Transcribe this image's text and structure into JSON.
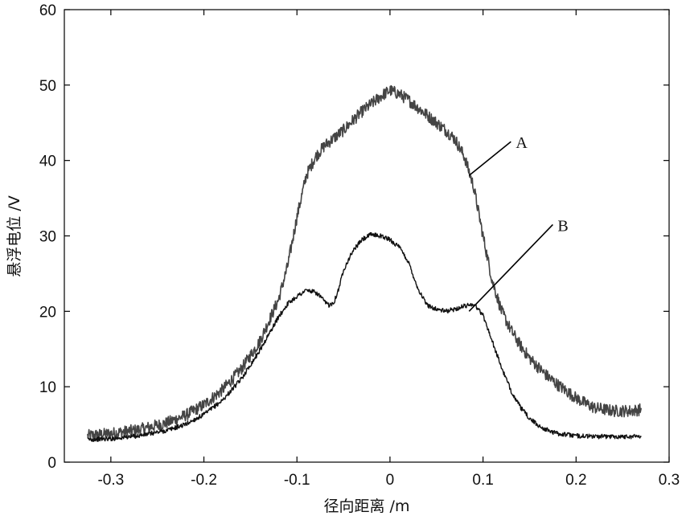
{
  "chart_data": {
    "type": "line",
    "title": "",
    "xlabel": "径向距离 /m",
    "ylabel": "悬浮电位 /V",
    "xlim": [
      -0.35,
      0.3
    ],
    "ylim": [
      0,
      60
    ],
    "xticks": [
      -0.3,
      -0.2,
      -0.1,
      0,
      0.1,
      0.2,
      0.3
    ],
    "xtick_labels": [
      "-0.3",
      "-0.2",
      "-0.1",
      "0",
      "0.1",
      "0.2",
      "0.3"
    ],
    "yticks": [
      0,
      10,
      20,
      30,
      40,
      50,
      60
    ],
    "ytick_labels": [
      "0",
      "10",
      "20",
      "30",
      "40",
      "50",
      "60"
    ],
    "grid": false,
    "legend": "none",
    "series": [
      {
        "name": "A",
        "color": "#444444",
        "noise": 0.8,
        "x": [
          -0.325,
          -0.3,
          -0.27,
          -0.24,
          -0.22,
          -0.2,
          -0.18,
          -0.16,
          -0.14,
          -0.12,
          -0.11,
          -0.1,
          -0.09,
          -0.08,
          -0.07,
          -0.06,
          -0.05,
          -0.04,
          -0.03,
          -0.02,
          -0.01,
          0,
          0.01,
          0.02,
          0.03,
          0.04,
          0.05,
          0.06,
          0.07,
          0.08,
          0.09,
          0.1,
          0.11,
          0.12,
          0.13,
          0.14,
          0.15,
          0.16,
          0.17,
          0.18,
          0.19,
          0.2,
          0.21,
          0.22,
          0.24,
          0.26,
          0.27
        ],
        "y": [
          3.5,
          3.8,
          4.3,
          5.2,
          6.2,
          7.6,
          9.6,
          12.3,
          16.0,
          21.5,
          26.0,
          32.5,
          38.0,
          40.5,
          42.0,
          43.0,
          44.0,
          45.3,
          46.5,
          47.5,
          48.5,
          49.3,
          48.8,
          48.0,
          47.0,
          46.0,
          45.0,
          44.0,
          42.8,
          40.5,
          36.5,
          30.0,
          24.0,
          20.0,
          17.5,
          15.5,
          13.8,
          12.5,
          11.3,
          10.3,
          9.4,
          8.5,
          7.8,
          7.2,
          6.8,
          6.8,
          7.0
        ]
      },
      {
        "name": "B",
        "color": "#111111",
        "noise": 0.3,
        "x": [
          -0.325,
          -0.3,
          -0.27,
          -0.24,
          -0.22,
          -0.2,
          -0.18,
          -0.16,
          -0.14,
          -0.13,
          -0.12,
          -0.11,
          -0.1,
          -0.09,
          -0.08,
          -0.075,
          -0.07,
          -0.065,
          -0.06,
          -0.055,
          -0.05,
          -0.04,
          -0.03,
          -0.02,
          -0.01,
          0,
          0.01,
          0.02,
          0.03,
          0.04,
          0.05,
          0.06,
          0.07,
          0.08,
          0.09,
          0.1,
          0.11,
          0.12,
          0.13,
          0.14,
          0.15,
          0.16,
          0.17,
          0.18,
          0.2,
          0.22,
          0.24,
          0.26,
          0.27
        ],
        "y": [
          3.0,
          3.1,
          3.5,
          4.2,
          5.0,
          6.3,
          8.2,
          11.0,
          14.8,
          17.0,
          19.2,
          21.0,
          22.0,
          22.8,
          22.5,
          22.0,
          21.2,
          20.8,
          21.3,
          23.0,
          25.5,
          28.0,
          29.5,
          30.2,
          30.0,
          29.5,
          28.5,
          26.5,
          23.0,
          20.8,
          20.3,
          20.0,
          20.3,
          20.7,
          21.0,
          19.5,
          16.0,
          12.5,
          9.5,
          7.3,
          5.8,
          4.8,
          4.2,
          3.8,
          3.5,
          3.4,
          3.4,
          3.4,
          3.5
        ]
      }
    ],
    "annotations": [
      {
        "text": "A",
        "series": "A",
        "target": [
          0.085,
          38.0
        ],
        "label_at": [
          0.13,
          42.5
        ]
      },
      {
        "text": "B",
        "series": "B",
        "target": [
          0.085,
          20.0
        ],
        "label_at": [
          0.175,
          31.5
        ]
      }
    ]
  }
}
